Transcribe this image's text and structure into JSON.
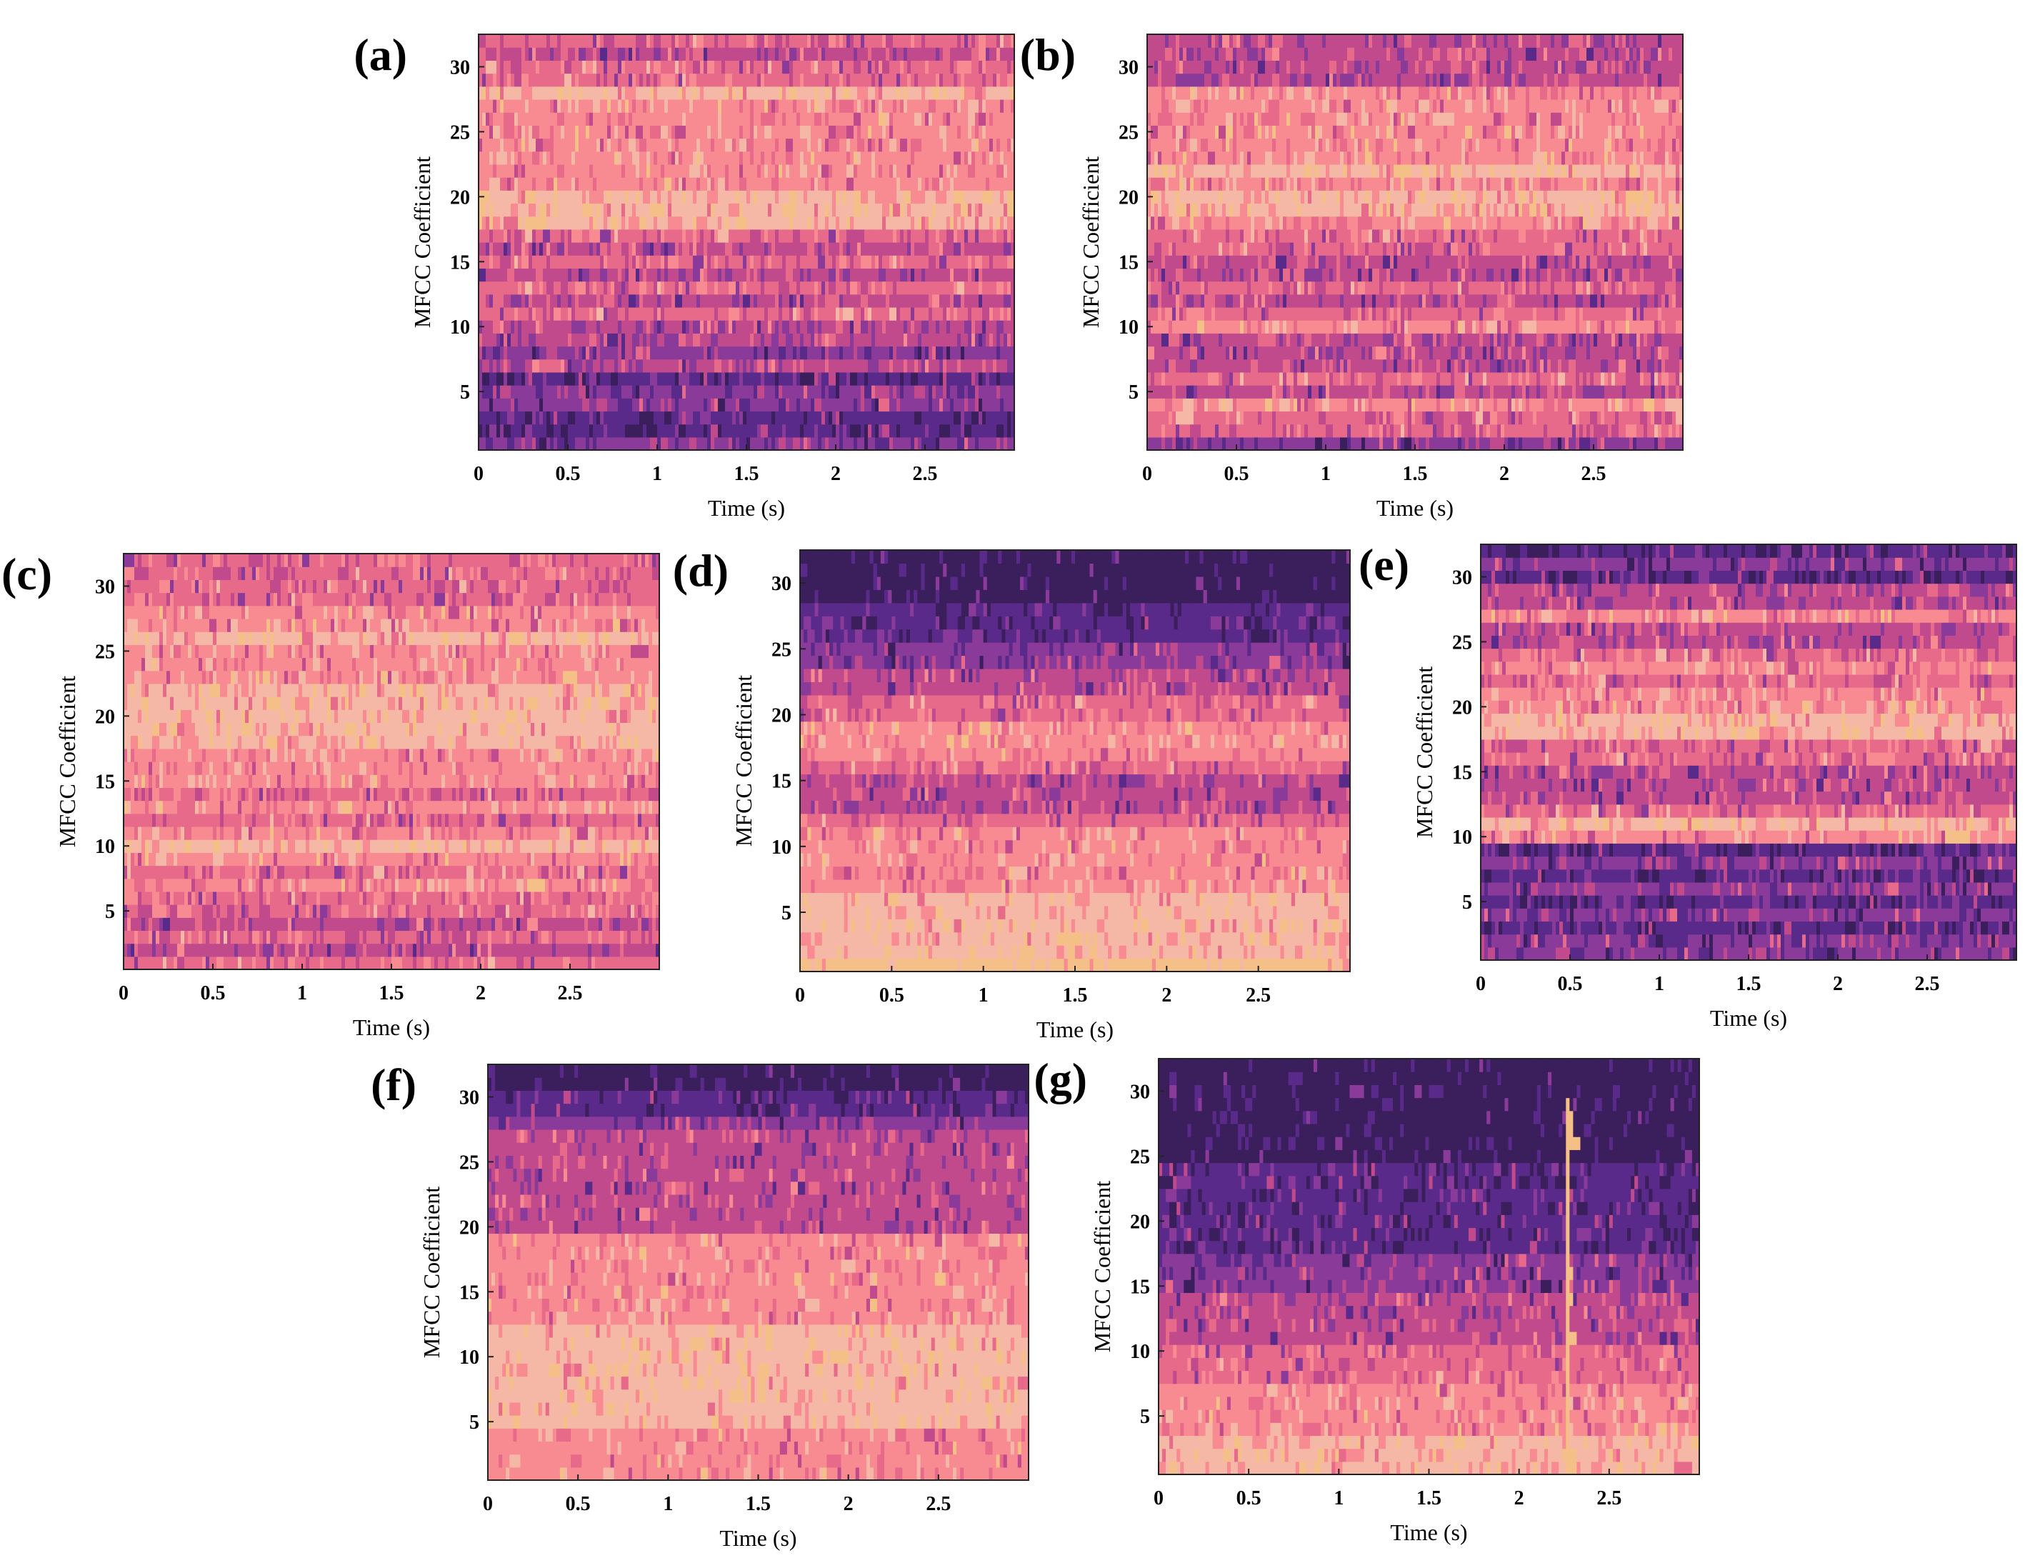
{
  "figure": {
    "colormap": [
      "#3b1f5c",
      "#5a2a8a",
      "#8a3b9a",
      "#c04a8c",
      "#e86a8a",
      "#f88a92",
      "#f6b8a6",
      "#f4c088"
    ]
  },
  "chart_data": [
    {
      "type": "heatmap",
      "panel_label": "(a)",
      "title": "",
      "xlabel": "Time  (s)",
      "ylabel": "MFCC Coefficient",
      "xlim": [
        0,
        3
      ],
      "ylim": [
        0.5,
        32.5
      ],
      "x_ticks": [
        0,
        0.5,
        1,
        1.5,
        2,
        2.5
      ],
      "x_tick_labels": [
        "0",
        "0.5",
        "1",
        "1.5",
        "2",
        "2.5"
      ],
      "y_ticks": [
        5,
        10,
        15,
        20,
        25,
        30
      ],
      "y_tick_labels": [
        "5",
        "10",
        "15",
        "20",
        "25",
        "30"
      ],
      "num_coefficients": 32,
      "band_levels": [
        2,
        1,
        1,
        2,
        2,
        1,
        3,
        2,
        3,
        3,
        4,
        3,
        4,
        3,
        4,
        3,
        4,
        6,
        6,
        6,
        5,
        5,
        5,
        5,
        5,
        5,
        5,
        6,
        4,
        4,
        3,
        4
      ],
      "noise": 0.32
    },
    {
      "type": "heatmap",
      "panel_label": "(b)",
      "title": "",
      "xlabel": "Time  (s)",
      "ylabel": "MFCC Coefficient",
      "xlim": [
        0,
        3
      ],
      "ylim": [
        0.5,
        32.5
      ],
      "x_ticks": [
        0,
        0.5,
        1,
        1.5,
        2,
        2.5
      ],
      "x_tick_labels": [
        "0",
        "0.5",
        "1",
        "1.5",
        "2",
        "2.5"
      ],
      "y_ticks": [
        5,
        10,
        15,
        20,
        25,
        30
      ],
      "y_tick_labels": [
        "5",
        "10",
        "15",
        "20",
        "25",
        "30"
      ],
      "num_coefficients": 32,
      "band_levels": [
        2,
        4,
        4,
        5,
        3,
        4,
        3,
        3,
        3,
        5,
        4,
        3,
        4,
        3,
        3,
        4,
        4,
        5,
        6,
        6,
        5,
        6,
        5,
        5,
        5,
        5,
        5,
        5,
        3,
        3,
        3,
        3
      ],
      "noise": 0.32
    },
    {
      "type": "heatmap",
      "panel_label": "(c)",
      "title": "",
      "xlabel": "Time  (s)",
      "ylabel": "MFCC Coefficient",
      "xlim": [
        0,
        3
      ],
      "ylim": [
        0.5,
        32.5
      ],
      "x_ticks": [
        0,
        0.5,
        1,
        1.5,
        2,
        2.5
      ],
      "x_tick_labels": [
        "0",
        "0.5",
        "1",
        "1.5",
        "2",
        "2.5"
      ],
      "y_ticks": [
        5,
        10,
        15,
        20,
        25,
        30
      ],
      "y_tick_labels": [
        "5",
        "10",
        "15",
        "20",
        "25",
        "30"
      ],
      "num_coefficients": 32,
      "band_levels": [
        4,
        3,
        4,
        3,
        4,
        4,
        5,
        4,
        5,
        6,
        5,
        4,
        5,
        4,
        5,
        5,
        5,
        6,
        6,
        6,
        6,
        6,
        5,
        5,
        5,
        6,
        5,
        5,
        4,
        4,
        4,
        4
      ],
      "noise": 0.3
    },
    {
      "type": "heatmap",
      "panel_label": "(d)",
      "title": "",
      "xlabel": "Time  (s)",
      "ylabel": "MFCC Coefficient",
      "xlim": [
        0,
        3
      ],
      "ylim": [
        0.5,
        32.5
      ],
      "x_ticks": [
        0,
        0.5,
        1,
        1.5,
        2,
        2.5
      ],
      "x_tick_labels": [
        "0",
        "0.5",
        "1",
        "1.5",
        "2",
        "2.5"
      ],
      "y_ticks": [
        5,
        10,
        15,
        20,
        25,
        30
      ],
      "y_tick_labels": [
        "5",
        "10",
        "15",
        "20",
        "25",
        "30"
      ],
      "num_coefficients": 32,
      "band_levels": [
        7,
        6,
        6,
        6,
        6,
        6,
        5,
        5,
        5,
        5,
        5,
        4,
        3,
        3,
        3,
        4,
        5,
        5,
        5,
        4,
        4,
        3,
        3,
        2,
        2,
        1,
        1,
        1,
        0,
        0,
        0,
        0
      ],
      "noise": 0.25
    },
    {
      "type": "heatmap",
      "panel_label": "(e)",
      "title": "",
      "xlabel": "Time  (s)",
      "ylabel": "MFCC Coefficient",
      "xlim": [
        0,
        3
      ],
      "ylim": [
        0.5,
        32.5
      ],
      "x_ticks": [
        0,
        0.5,
        1,
        1.5,
        2,
        2.5
      ],
      "x_tick_labels": [
        "0",
        "0.5",
        "1",
        "1.5",
        "2",
        "2.5"
      ],
      "y_ticks": [
        5,
        10,
        15,
        20,
        25,
        30
      ],
      "y_tick_labels": [
        "5",
        "10",
        "15",
        "20",
        "25",
        "30"
      ],
      "num_coefficients": 32,
      "band_levels": [
        2,
        2,
        1,
        2,
        1,
        2,
        1,
        2,
        1,
        5,
        6,
        4,
        3,
        3,
        3,
        4,
        4,
        6,
        6,
        5,
        5,
        4,
        5,
        4,
        3,
        3,
        5,
        3,
        3,
        1,
        2,
        1
      ],
      "noise": 0.3
    },
    {
      "type": "heatmap",
      "panel_label": "(f)",
      "title": "",
      "xlabel": "Time  (s)",
      "ylabel": "MFCC Coefficient",
      "xlim": [
        0,
        3
      ],
      "ylim": [
        0.5,
        32.5
      ],
      "x_ticks": [
        0,
        0.5,
        1,
        1.5,
        2,
        2.5
      ],
      "x_tick_labels": [
        "0",
        "0.5",
        "1",
        "1.5",
        "2",
        "2.5"
      ],
      "y_ticks": [
        5,
        10,
        15,
        20,
        25,
        30
      ],
      "y_tick_labels": [
        "5",
        "10",
        "15",
        "20",
        "25",
        "30"
      ],
      "num_coefficients": 32,
      "band_levels": [
        5,
        5,
        5,
        5,
        6,
        6,
        6,
        6,
        6,
        6,
        6,
        6,
        5,
        5,
        5,
        5,
        5,
        5,
        5,
        3,
        3,
        3,
        3,
        3,
        3,
        3,
        3,
        2,
        1,
        1,
        0,
        0
      ],
      "noise": 0.22
    },
    {
      "type": "heatmap",
      "panel_label": "(g)",
      "title": "",
      "xlabel": "Time  (s)",
      "ylabel": "MFCC Coefficient",
      "xlim": [
        0,
        3
      ],
      "ylim": [
        0.5,
        32.5
      ],
      "x_ticks": [
        0,
        0.5,
        1,
        1.5,
        2,
        2.5
      ],
      "x_tick_labels": [
        "0",
        "0.5",
        "1",
        "1.5",
        "2",
        "2.5"
      ],
      "y_ticks": [
        5,
        10,
        15,
        20,
        25,
        30
      ],
      "y_tick_labels": [
        "5",
        "10",
        "15",
        "20",
        "25",
        "30"
      ],
      "num_coefficients": 32,
      "band_levels": [
        6,
        6,
        6,
        5,
        5,
        5,
        5,
        4,
        4,
        4,
        3,
        3,
        3,
        3,
        2,
        2,
        2,
        1,
        1,
        1,
        1,
        1,
        1,
        1,
        0,
        0,
        0,
        0,
        0,
        0,
        0,
        0
      ],
      "noise": 0.25,
      "transient_time_s": 2.27
    }
  ]
}
